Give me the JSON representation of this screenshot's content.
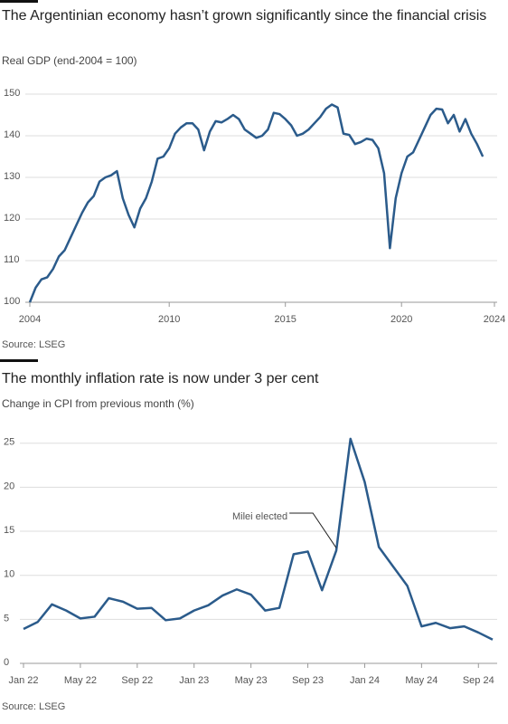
{
  "chart_data": [
    {
      "type": "line",
      "title": "The Argentinian economy hasn’t grown significantly since the financial crisis",
      "subtitle": "Real GDP (end-2004 = 100)",
      "source": "Source: LSEG",
      "x": [
        2004,
        2004.25,
        2004.5,
        2004.75,
        2005,
        2005.25,
        2005.5,
        2005.75,
        2006,
        2006.25,
        2006.5,
        2006.75,
        2007,
        2007.25,
        2007.5,
        2007.75,
        2008,
        2008.25,
        2008.5,
        2008.75,
        2009,
        2009.25,
        2009.5,
        2009.75,
        2010,
        2010.25,
        2010.5,
        2010.75,
        2011,
        2011.25,
        2011.5,
        2011.75,
        2012,
        2012.25,
        2012.5,
        2012.75,
        2013,
        2013.25,
        2013.5,
        2013.75,
        2014,
        2014.25,
        2014.5,
        2014.75,
        2015,
        2015.25,
        2015.5,
        2015.75,
        2016,
        2016.25,
        2016.5,
        2016.75,
        2017,
        2017.25,
        2017.5,
        2017.75,
        2018,
        2018.25,
        2018.5,
        2018.75,
        2019,
        2019.25,
        2019.5,
        2019.75,
        2020,
        2020.25,
        2020.5,
        2020.75,
        2021,
        2021.25,
        2021.5,
        2021.75,
        2022,
        2022.25,
        2022.5,
        2022.75,
        2023,
        2023.25,
        2023.5
      ],
      "values": [
        100,
        103.5,
        105.5,
        106,
        108,
        111,
        112.5,
        115.5,
        118.5,
        121.5,
        124,
        125.5,
        129,
        130,
        130.5,
        131.5,
        125,
        121,
        118,
        122.5,
        125,
        129,
        134.5,
        135,
        137,
        140.5,
        142,
        143,
        143,
        141.5,
        136.5,
        141,
        143.5,
        143.2,
        144,
        145,
        144,
        141.5,
        140.5,
        139.5,
        140,
        141.5,
        145.5,
        145.2,
        144,
        142.5,
        140,
        140.5,
        141.5,
        143,
        144.5,
        146.5,
        147.5,
        146.8,
        140.5,
        140.2,
        138,
        138.5,
        139.3,
        139,
        137,
        131,
        113,
        125,
        131,
        135,
        136,
        139,
        142,
        145,
        146.5,
        146.3,
        143,
        145,
        141,
        144,
        140.5,
        138,
        135
      ],
      "color": "#2b5b8b",
      "xlim": [
        2004,
        2024
      ],
      "xticks": [
        2004,
        2010,
        2015,
        2020,
        2024
      ],
      "ylim": [
        100,
        150
      ],
      "yticks": [
        100,
        110,
        120,
        130,
        140,
        150
      ],
      "grid": true
    },
    {
      "type": "line",
      "title": "The monthly inflation rate is now under 3 per cent",
      "subtitle": "Change in CPI from previous month (%)",
      "source": "Source: LSEG",
      "annotation": "Milei elected",
      "categories": [
        "Jan 22",
        null,
        null,
        null,
        "May 22",
        null,
        null,
        null,
        "Sep 22",
        null,
        null,
        null,
        "Jan 23",
        null,
        null,
        null,
        "May 23",
        null,
        null,
        null,
        "Sep 23",
        null,
        null,
        null,
        "Jan 24",
        null,
        null,
        null,
        "May 24",
        null,
        null,
        null,
        "Sep 24",
        null
      ],
      "values": [
        3.9,
        4.7,
        6.7,
        6.0,
        5.1,
        5.3,
        7.4,
        7.0,
        6.2,
        6.3,
        4.9,
        5.1,
        6.0,
        6.6,
        7.7,
        8.4,
        7.8,
        6.0,
        6.3,
        12.4,
        12.7,
        8.3,
        12.8,
        25.5,
        20.6,
        13.2,
        11.0,
        8.8,
        4.2,
        4.6,
        4.0,
        4.2,
        3.5,
        2.7
      ],
      "color": "#2b5b8b",
      "ylim": [
        0,
        26
      ],
      "yticks": [
        0,
        5,
        10,
        15,
        20,
        25
      ],
      "grid": true
    }
  ]
}
